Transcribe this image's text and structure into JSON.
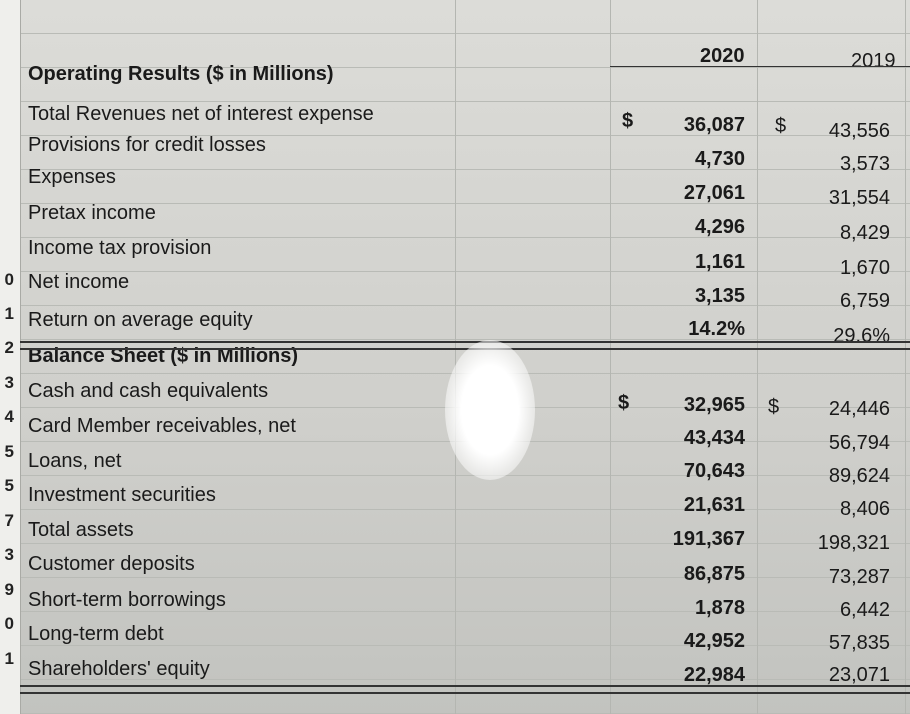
{
  "headers": {
    "year_2020": "2020",
    "year_2019": "2019"
  },
  "currency_symbol": "$",
  "rows": [
    {
      "label": "Operating Results ($ in Millions)",
      "section": true,
      "v2020": "",
      "v2019": ""
    },
    {
      "label": "Total Revenues net of interest expense",
      "v2020": "36,087",
      "v2019": "43,556",
      "dollar": true
    },
    {
      "label": "Provisions for credit losses",
      "v2020": "4,730",
      "v2019": "3,573"
    },
    {
      "label": "Expenses",
      "v2020": "27,061",
      "v2019": "31,554"
    },
    {
      "label": "Pretax income",
      "v2020": "4,296",
      "v2019": "8,429"
    },
    {
      "label": "Income tax provision",
      "v2020": "1,161",
      "v2019": "1,670"
    },
    {
      "label": "Net income",
      "v2020": "3,135",
      "v2019": "6,759"
    },
    {
      "label": "Return on average equity",
      "v2020": "14.2%",
      "v2019": "29.6%"
    },
    {
      "label": "Balance Sheet ($ in Millions)",
      "section": true,
      "v2020": "",
      "v2019": ""
    },
    {
      "label": "Cash and cash equivalents",
      "v2020": "32,965",
      "v2019": "24,446",
      "dollar": true
    },
    {
      "label": "Card Member receivables, net",
      "v2020": "43,434",
      "v2019": "56,794"
    },
    {
      "label": "Loans, net",
      "v2020": "70,643",
      "v2019": "89,624"
    },
    {
      "label": "Investment securities",
      "v2020": "21,631",
      "v2019": "8,406"
    },
    {
      "label": "Total assets",
      "v2020": "191,367",
      "v2019": "198,321"
    },
    {
      "label": "Customer deposits",
      "v2020": "86,875",
      "v2019": "73,287"
    },
    {
      "label": "Short-term borrowings",
      "v2020": "1,878",
      "v2019": "6,442"
    },
    {
      "label": "Long-term debt",
      "v2020": "42,952",
      "v2019": "57,835"
    },
    {
      "label": "Shareholders' equity",
      "v2020": "22,984",
      "v2019": "23,071"
    }
  ],
  "row_numbers": [
    "0",
    "1",
    "2",
    "3",
    "4",
    "5",
    "5",
    "7",
    "3",
    "9",
    "0",
    "1"
  ]
}
